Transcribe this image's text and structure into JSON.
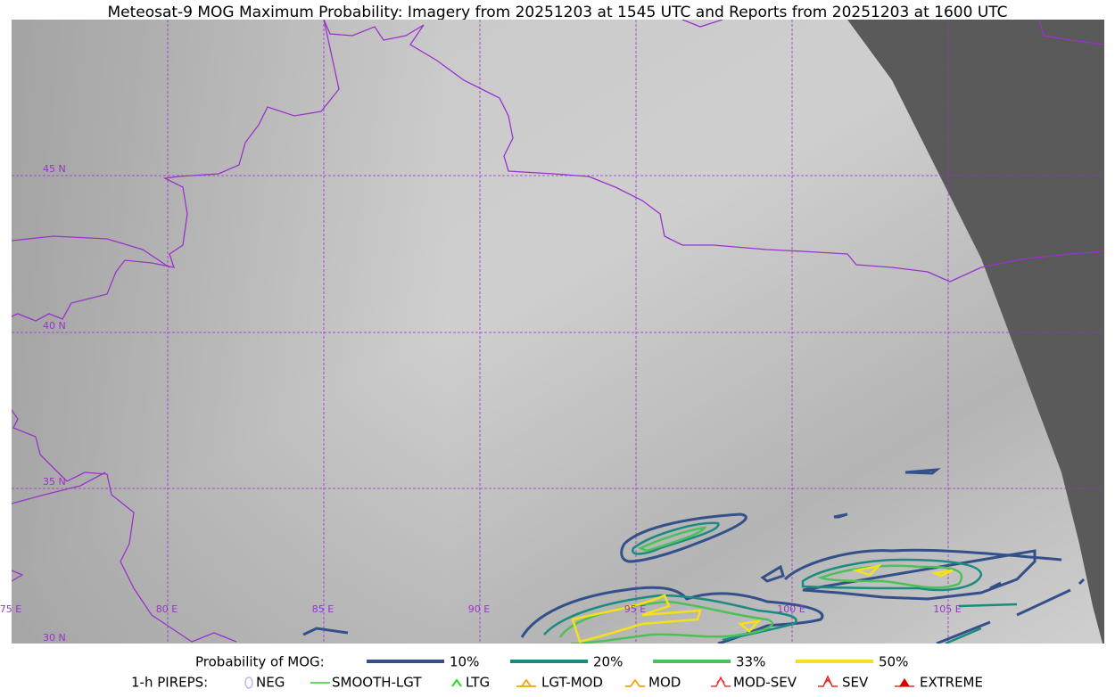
{
  "header": {
    "title": "Meteosat-9 MOG Maximum Probability: Imagery from 20251203 at 1545 UTC and Reports from 20251203 at 1600 UTC"
  },
  "map": {
    "lat_labels": [
      "45 N",
      "40 N",
      "35 N",
      "30 N"
    ],
    "lon_labels": [
      "75 E",
      "80 E",
      "85 E",
      "90 E",
      "95 E",
      "100 E",
      "105 E"
    ]
  },
  "legend": {
    "probability": {
      "label": "Probability of MOG:",
      "levels": [
        {
          "label": "10%",
          "color": "#34508a"
        },
        {
          "label": "20%",
          "color": "#1b8b80"
        },
        {
          "label": "33%",
          "color": "#4cc05a"
        },
        {
          "label": "50%",
          "color": "#f5e11a"
        }
      ]
    },
    "pireps": {
      "label": "1-h PIREPS:",
      "items": [
        {
          "label": "NEG",
          "color": "#b8b8f0"
        },
        {
          "label": "SMOOTH-LGT",
          "color": "#33cc33"
        },
        {
          "label": "LTG",
          "color": "#22dd22"
        },
        {
          "label": "LGT-MOD",
          "color": "#f0a800"
        },
        {
          "label": "MOD",
          "color": "#f0a800"
        },
        {
          "label": "MOD-SEV",
          "color": "#ee3333"
        },
        {
          "label": "SEV",
          "color": "#ee2222"
        },
        {
          "label": "EXTREME",
          "color": "#dd0000"
        }
      ]
    }
  }
}
